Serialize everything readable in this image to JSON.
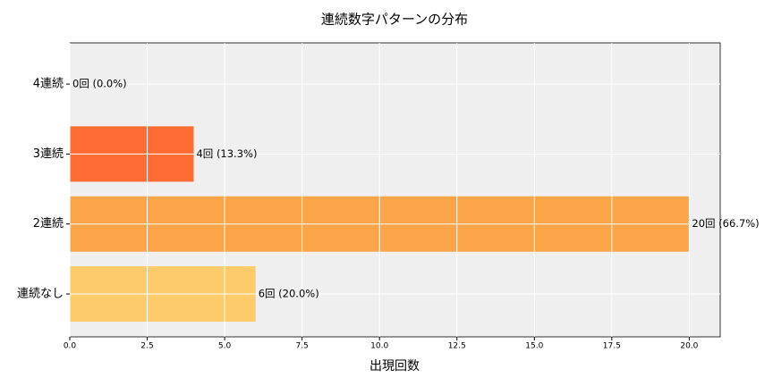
{
  "chart_data": {
    "type": "barh",
    "title": "連続数字パターンの分布",
    "xlabel": "出現回数",
    "categories": [
      "連続なし",
      "2連続",
      "3連続",
      "4連続"
    ],
    "values": [
      6,
      20,
      4,
      0
    ],
    "value_labels": [
      "6回 (20.0%)",
      "20回 (66.7%)",
      "4回 (13.3%)",
      "0回 (0.0%)"
    ],
    "colors": [
      "#fecb6a",
      "#fca448",
      "#fe6c33",
      "#fe6c33"
    ],
    "xlim": [
      0,
      21
    ],
    "xticks": [
      {
        "value": 0,
        "label": "0.0"
      },
      {
        "value": 2.5,
        "label": "2.5"
      },
      {
        "value": 5,
        "label": "5.0"
      },
      {
        "value": 7.5,
        "label": "7.5"
      },
      {
        "value": 10,
        "label": "10.0"
      },
      {
        "value": 12.5,
        "label": "12.5"
      },
      {
        "value": 15,
        "label": "15.0"
      },
      {
        "value": 17.5,
        "label": "17.5"
      },
      {
        "value": 20,
        "label": "20.0"
      }
    ],
    "grid": true
  }
}
